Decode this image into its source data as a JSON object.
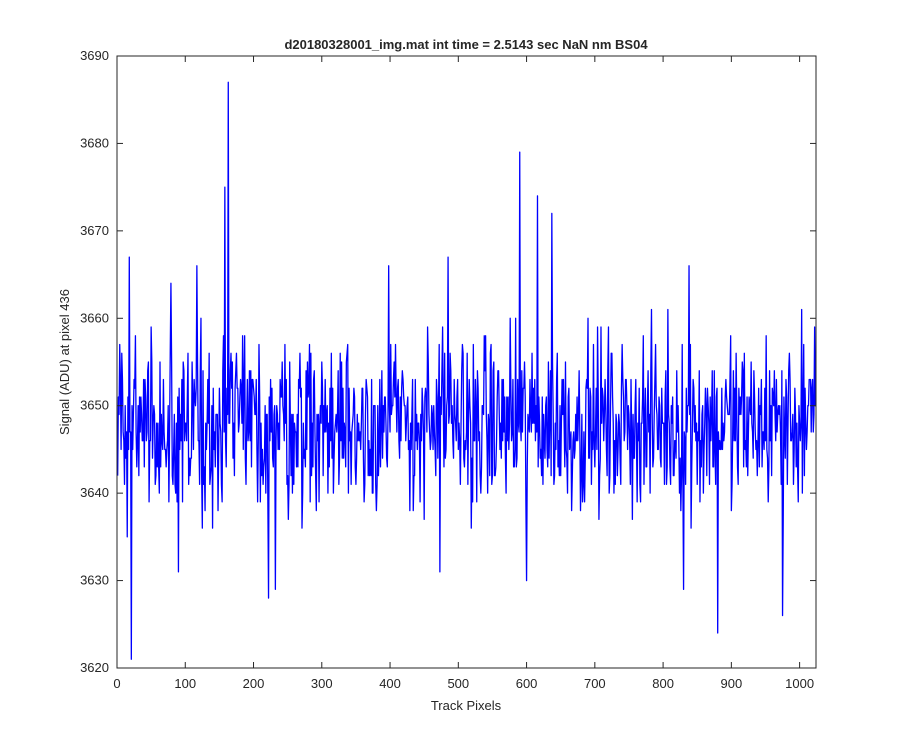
{
  "chart_data": {
    "type": "line",
    "title": "d20180328001_img.mat int time = 2.5143 sec  NaN nm BS04",
    "xlabel": "Track Pixels",
    "ylabel": "Signal (ADU) at pixel 436",
    "xlim": [
      0,
      1024
    ],
    "ylim": [
      3620,
      3690
    ],
    "xticks": [
      "0",
      "100",
      "200",
      "300",
      "400",
      "500",
      "600",
      "700",
      "800",
      "900",
      "1000"
    ],
    "yticks": [
      "3620",
      "3630",
      "3640",
      "3650",
      "3660",
      "3670",
      "3680",
      "3690"
    ],
    "grid": false,
    "legend": "none",
    "series": [
      {
        "color": "#0000ff",
        "x": [
          1,
          1024
        ],
        "notable_points": [
          {
            "x": 4,
            "y": 3657
          },
          {
            "x": 15,
            "y": 3635
          },
          {
            "x": 18,
            "y": 3667
          },
          {
            "x": 21,
            "y": 3621
          },
          {
            "x": 79,
            "y": 3664
          },
          {
            "x": 90,
            "y": 3631
          },
          {
            "x": 117,
            "y": 3666
          },
          {
            "x": 158,
            "y": 3675
          },
          {
            "x": 163,
            "y": 3687
          },
          {
            "x": 222,
            "y": 3628
          },
          {
            "x": 232,
            "y": 3629
          },
          {
            "x": 398,
            "y": 3666
          },
          {
            "x": 473,
            "y": 3631
          },
          {
            "x": 485,
            "y": 3667
          },
          {
            "x": 590,
            "y": 3679
          },
          {
            "x": 600,
            "y": 3630
          },
          {
            "x": 616,
            "y": 3674
          },
          {
            "x": 637,
            "y": 3672
          },
          {
            "x": 830,
            "y": 3629
          },
          {
            "x": 838,
            "y": 3666
          },
          {
            "x": 880,
            "y": 3624
          },
          {
            "x": 975,
            "y": 3626
          },
          {
            "x": 1003,
            "y": 3661
          }
        ],
        "baseline_mean": 3648,
        "noise_spread": 6
      }
    ]
  }
}
